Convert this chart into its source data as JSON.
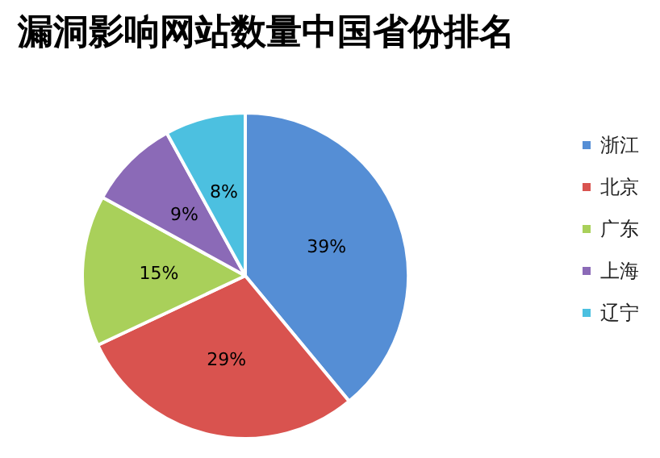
{
  "chart_data": {
    "type": "pie",
    "title": "漏洞影响网站数量中国省份排名",
    "categories": [
      "浙江",
      "北京",
      "广东",
      "上海",
      "辽宁"
    ],
    "values": [
      39,
      29,
      15,
      9,
      8
    ],
    "value_labels": [
      "39%",
      "29%",
      "15%",
      "9%",
      "8%"
    ],
    "colors": [
      "#558ed5",
      "#d9534f",
      "#a9d05a",
      "#8b6ab7",
      "#4cc0e0"
    ],
    "legend": "right"
  }
}
